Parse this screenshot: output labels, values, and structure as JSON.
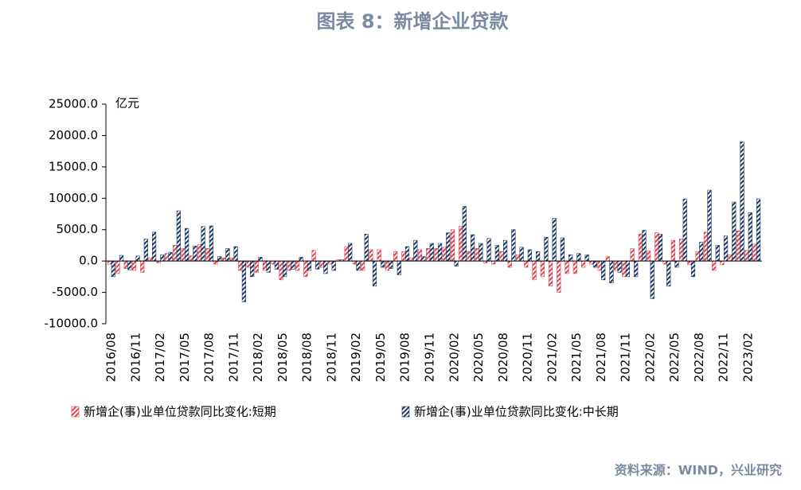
{
  "chart_data": {
    "type": "bar",
    "title": "图表 8：新增企业贷款",
    "y_label": "亿元",
    "source": "资料来源：WIND，兴业研究",
    "categories": [
      "2016/08",
      null,
      null,
      "2016/11",
      null,
      null,
      "2017/02",
      null,
      null,
      "2017/05",
      null,
      null,
      "2017/08",
      null,
      null,
      "2017/11",
      null,
      null,
      "2018/02",
      null,
      null,
      "2018/05",
      null,
      null,
      "2018/08",
      null,
      null,
      "2018/11",
      null,
      null,
      "2019/02",
      null,
      null,
      "2019/05",
      null,
      null,
      "2019/08",
      null,
      null,
      "2019/11",
      null,
      null,
      "2020/02",
      null,
      null,
      "2020/05",
      null,
      null,
      "2020/08",
      null,
      null,
      "2020/11",
      null,
      null,
      "2021/02",
      null,
      null,
      "2021/05",
      null,
      null,
      "2021/08",
      null,
      null,
      "2021/11",
      null,
      null,
      "2022/02",
      null,
      null,
      "2022/05",
      null,
      null,
      "2022/08",
      null,
      null,
      "2022/11",
      null,
      null,
      "2023/02",
      null
    ],
    "series": [
      {
        "name": "新增企(事)业单位贷款同比变化:短期",
        "color": "#e0424f",
        "values": [
          -500,
          -2000,
          -1200,
          -1500,
          -1800,
          500,
          -300,
          1200,
          2500,
          2000,
          800,
          2600,
          2000,
          -500,
          500,
          500,
          -1500,
          -1000,
          -1800,
          -1500,
          -500,
          -3000,
          -1500,
          -1500,
          -2500,
          1700,
          -1000,
          -500,
          200,
          2300,
          -500,
          -1500,
          1800,
          1800,
          -1500,
          1500,
          1500,
          500,
          1800,
          2000,
          2000,
          2200,
          5000,
          5500,
          1500,
          2000,
          -300,
          -500,
          1500,
          -1000,
          1000,
          -1000,
          -3000,
          -2500,
          -4000,
          -5000,
          -2000,
          -2000,
          -1000,
          -500,
          -1500,
          700,
          -1500,
          -2500,
          2000,
          4300,
          1600,
          4500,
          -500,
          3300,
          3500,
          -600,
          1500,
          4600,
          -1500,
          -600,
          1000,
          4800,
          1700,
          2700
        ]
      },
      {
        "name": "新增企(事)业单位贷款同比变化:中长期",
        "color": "#1f3864",
        "values": [
          -2500,
          900,
          -1400,
          800,
          3500,
          4600,
          1000,
          1400,
          8000,
          5200,
          2400,
          5500,
          5600,
          700,
          2000,
          2300,
          -6500,
          -2500,
          600,
          -1800,
          -1300,
          -2500,
          -1300,
          600,
          -1500,
          -1300,
          -2000,
          -1500,
          200,
          2800,
          -1500,
          4300,
          -4000,
          -1000,
          -1200,
          -2200,
          2300,
          3300,
          700,
          2800,
          2800,
          4500,
          -800,
          8700,
          4200,
          2800,
          3600,
          2500,
          3300,
          5000,
          2200,
          1800,
          1500,
          3800,
          6800,
          3700,
          1000,
          1200,
          1000,
          -1000,
          -3000,
          -3500,
          -1800,
          -2500,
          -2500,
          4900,
          -6000,
          4300,
          -4000,
          -1000,
          9900,
          -2500,
          3000,
          11300,
          2500,
          4000,
          9400,
          19000,
          7700,
          9900
        ]
      }
    ],
    "ylim": [
      -10000,
      25000
    ],
    "yticks": [
      {
        "value": -10000,
        "label": "-10000.0"
      },
      {
        "value": -5000,
        "label": "-5000.0"
      },
      {
        "value": 0,
        "label": "0.0"
      },
      {
        "value": 5000,
        "label": "5000.0"
      },
      {
        "value": 10000,
        "label": "10000.0"
      },
      {
        "value": 15000,
        "label": "15000.0"
      },
      {
        "value": 20000,
        "label": "20000.0"
      },
      {
        "value": 25000,
        "label": "25000.0"
      }
    ],
    "grid": false
  }
}
